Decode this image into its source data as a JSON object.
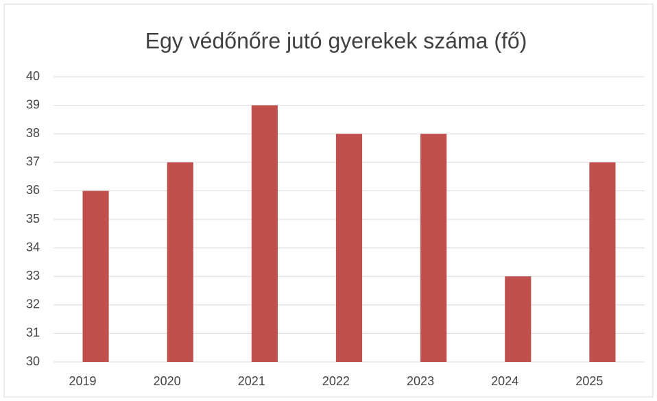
{
  "chart_data": {
    "type": "bar",
    "title": "Egy védőnőre jutó gyerekek száma (fő)",
    "categories": [
      "2019",
      "2020",
      "2021",
      "2022",
      "2023",
      "2024",
      "2025"
    ],
    "values": [
      36,
      37,
      39,
      38,
      38,
      33,
      37
    ],
    "color": "#c0504d",
    "ylim": [
      30,
      40
    ],
    "yticks": [
      30,
      31,
      32,
      33,
      34,
      35,
      36,
      37,
      38,
      39,
      40
    ],
    "grid": true
  }
}
